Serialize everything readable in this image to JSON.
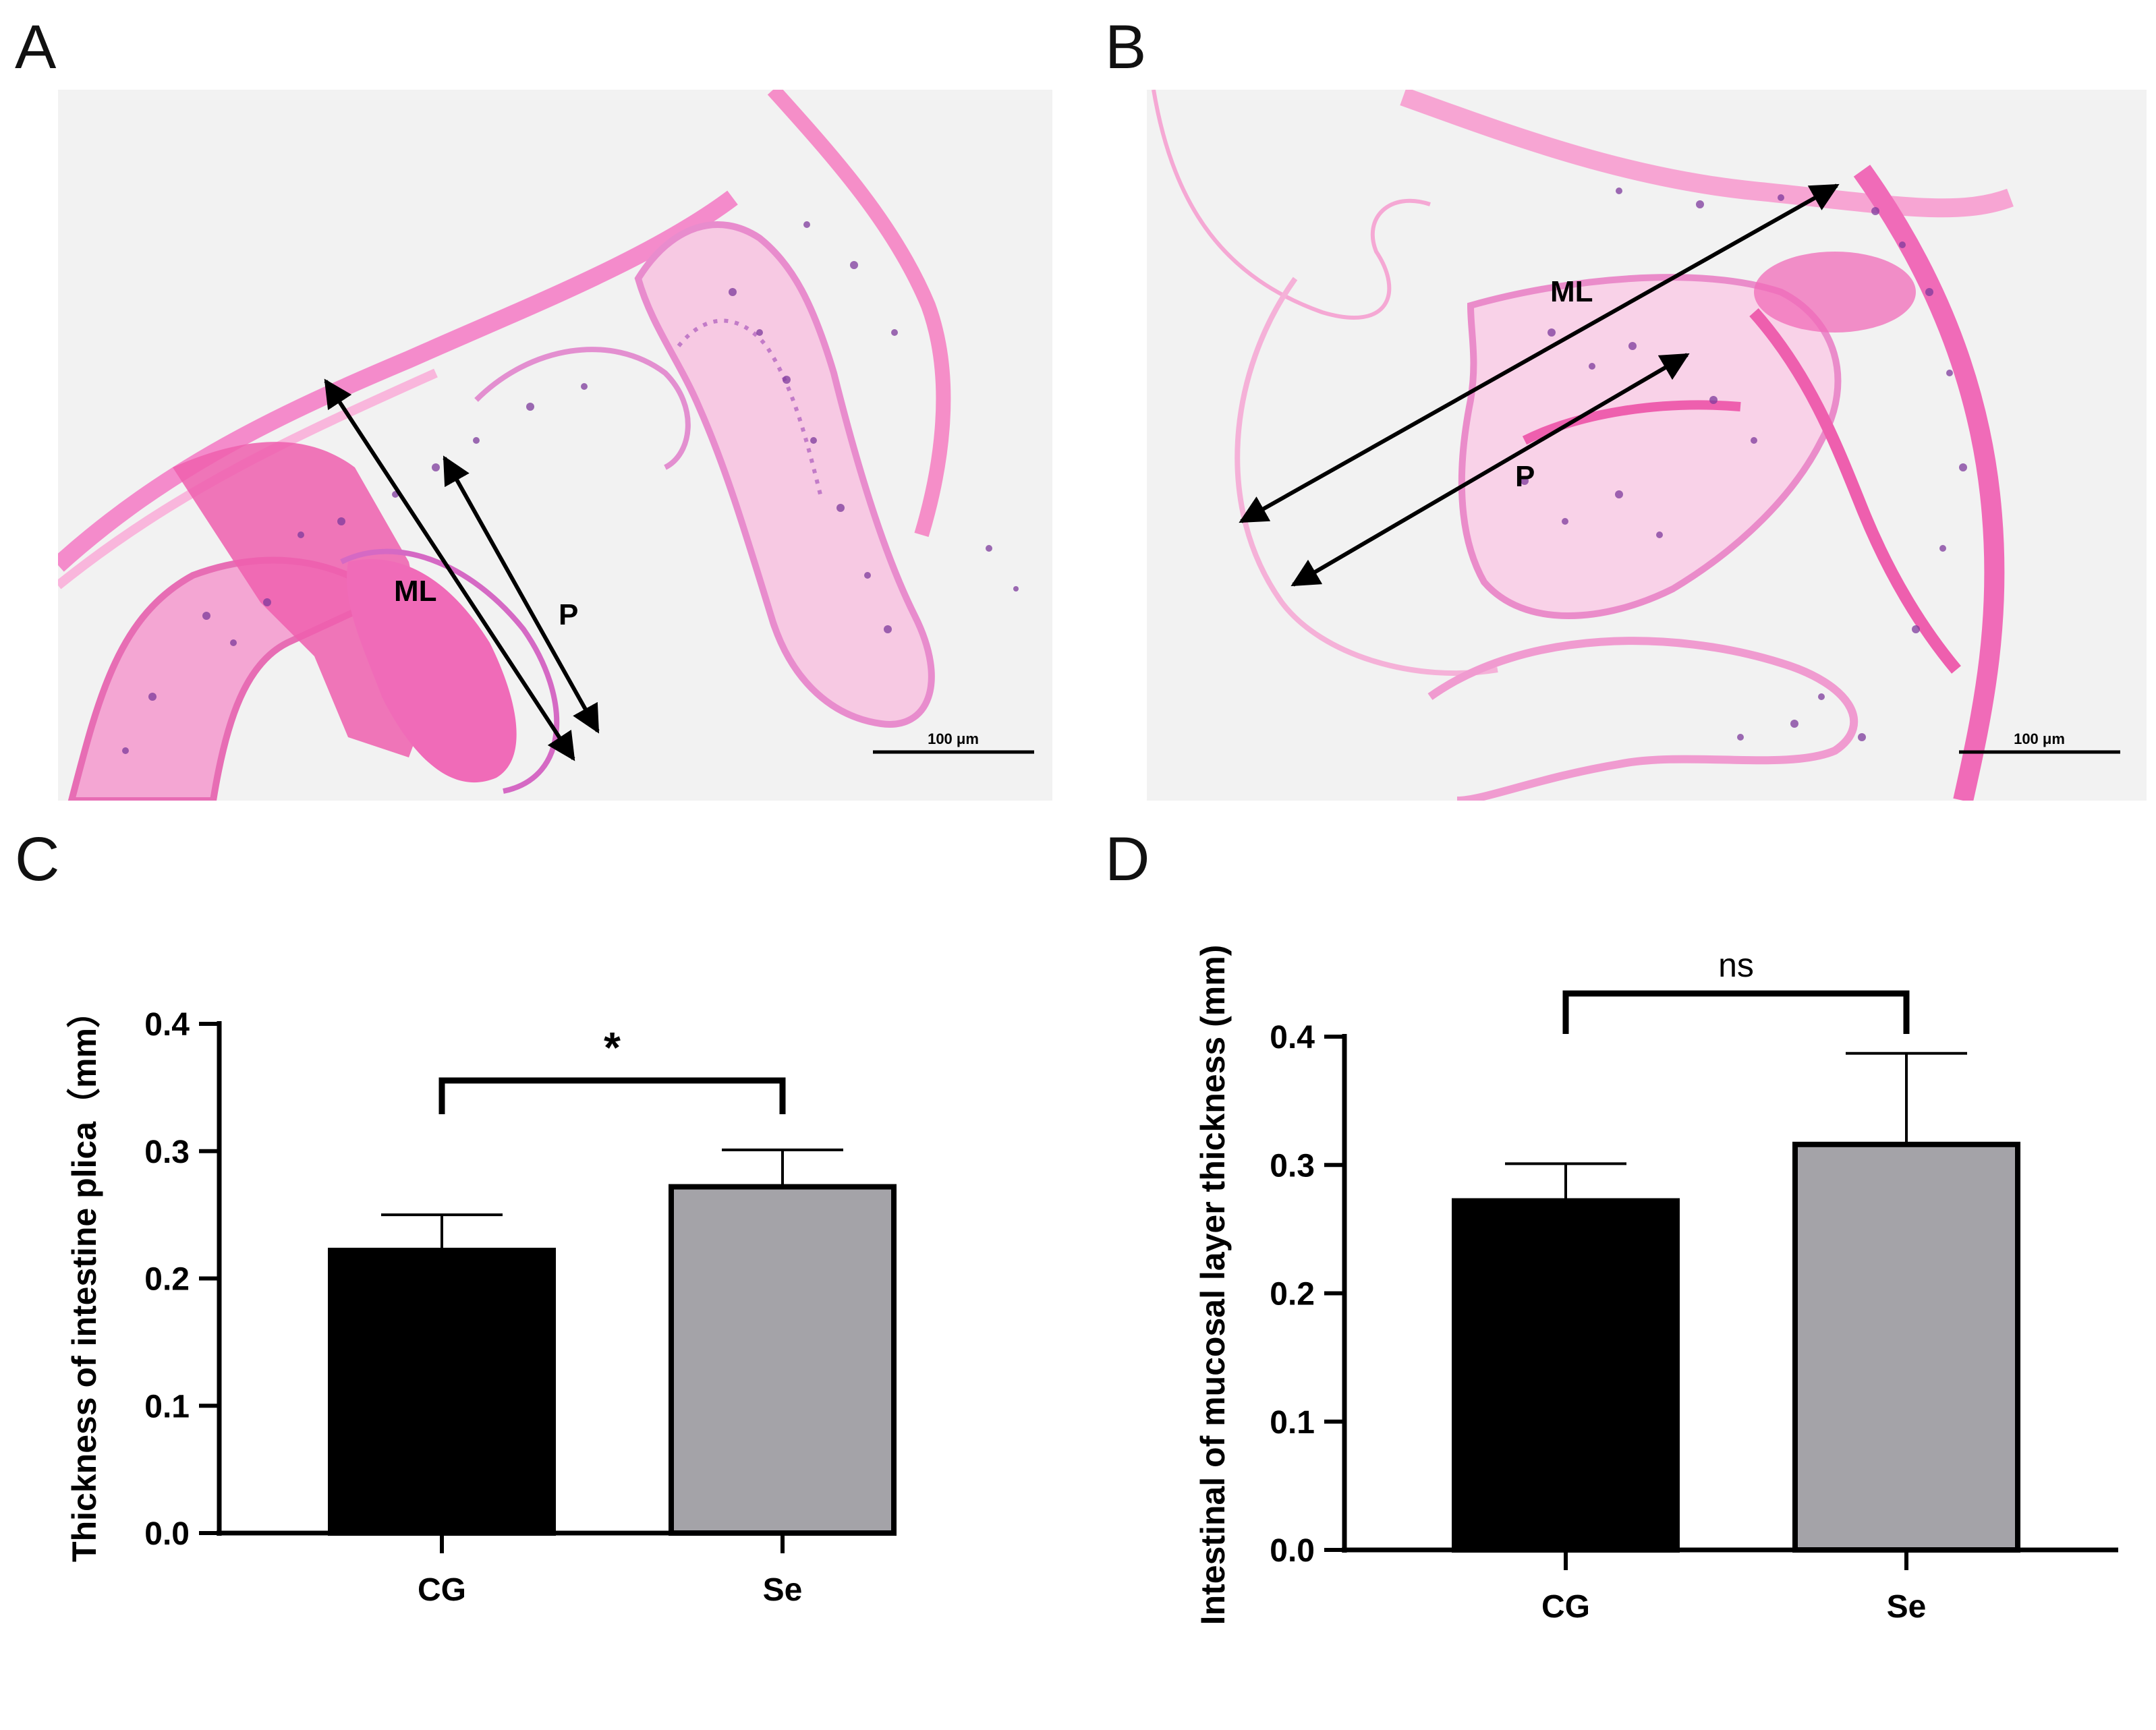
{
  "panels": {
    "a": {
      "letter": "A"
    },
    "b": {
      "letter": "B"
    },
    "c": {
      "letter": "C"
    },
    "d": {
      "letter": "D"
    }
  },
  "micrographs": [
    {
      "panel": "A",
      "labels": {
        "ml": "ML",
        "p": "P"
      },
      "scale_bar": "100 μm"
    },
    {
      "panel": "B",
      "labels": {
        "ml": "ML",
        "p": "P"
      },
      "scale_bar": "100 μm"
    }
  ],
  "colors": {
    "cg_bar": "#000000",
    "se_bar": "#a4a3a8",
    "tissue_pink": "#f06bb8",
    "nuclei_purple": "#7d3a9c",
    "background_tissue": "#f2f2f2"
  },
  "chart_data": [
    {
      "panel": "C",
      "type": "bar",
      "categories": [
        "CG",
        "Se"
      ],
      "values": [
        0.222,
        0.272
      ],
      "errors": [
        0.028,
        0.029
      ],
      "ylabel": "Thickness of intestine  plica（mm）",
      "xlabel": "",
      "ylim": [
        0,
        0.4
      ],
      "yticks": [
        "0.0",
        "0.1",
        "0.2",
        "0.3",
        "0.4"
      ],
      "significance": "*",
      "bar_colors": [
        "#000000",
        "#a4a3a8"
      ],
      "grid": false,
      "legend": "none"
    },
    {
      "panel": "D",
      "type": "bar",
      "categories": [
        "CG",
        "Se"
      ],
      "values": [
        0.272,
        0.316
      ],
      "errors": [
        0.029,
        0.071
      ],
      "ylabel": "Intestinal of mucosal layer thickness (mm)",
      "xlabel": "",
      "ylim": [
        0,
        0.4
      ],
      "yticks": [
        "0.0",
        "0.1",
        "0.2",
        "0.3",
        "0.4"
      ],
      "significance": "ns",
      "bar_colors": [
        "#000000",
        "#a4a3a8"
      ],
      "grid": false,
      "legend": "none"
    }
  ]
}
